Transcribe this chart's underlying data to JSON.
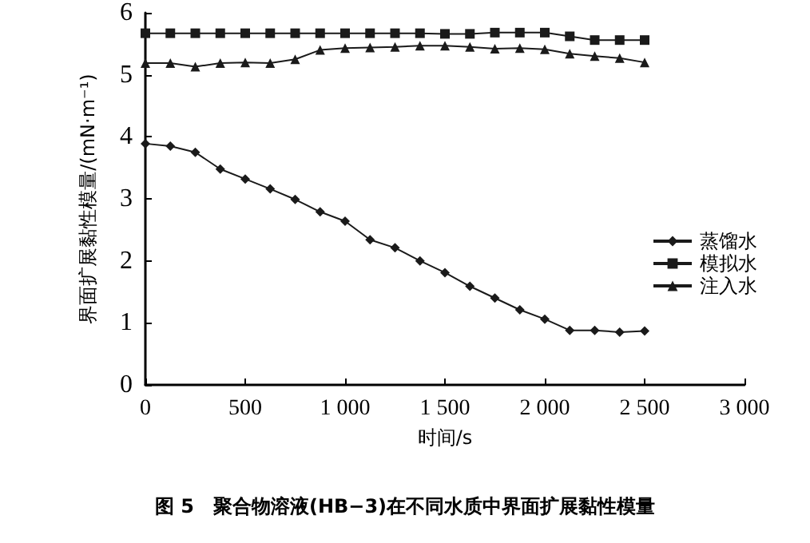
{
  "chart_data": {
    "type": "line",
    "title": "图 5　聚合物溶液(HB−3)在不同水质中界面扩展黏性模量",
    "xlabel": "时间/s",
    "ylabel": "界面扩展黏性模量/(mN·m⁻¹)",
    "x": [
      0,
      125,
      250,
      375,
      500,
      625,
      750,
      875,
      1000,
      1125,
      1250,
      1375,
      1500,
      1625,
      1750,
      1875,
      2000,
      2125,
      2250,
      2375,
      2500
    ],
    "series": [
      {
        "name": "蒸馏水",
        "color": "#1a1a1a",
        "marker": "diamond",
        "values": [
          3.89,
          3.85,
          3.75,
          3.48,
          3.32,
          3.16,
          2.99,
          2.79,
          2.64,
          2.34,
          2.21,
          2.0,
          1.81,
          1.59,
          1.4,
          1.21,
          1.06,
          0.88,
          0.88,
          0.85,
          0.87
        ]
      },
      {
        "name": "模拟水",
        "color": "#1a1a1a",
        "marker": "square",
        "values": [
          5.67,
          5.67,
          5.67,
          5.67,
          5.67,
          5.67,
          5.67,
          5.67,
          5.67,
          5.67,
          5.67,
          5.67,
          5.66,
          5.66,
          5.68,
          5.68,
          5.68,
          5.62,
          5.56,
          5.56,
          5.56
        ]
      },
      {
        "name": "注入水",
        "color": "#1a1a1a",
        "marker": "triangle",
        "values": [
          5.19,
          5.19,
          5.13,
          5.19,
          5.2,
          5.19,
          5.25,
          5.4,
          5.43,
          5.44,
          5.45,
          5.47,
          5.47,
          5.45,
          5.42,
          5.43,
          5.41,
          5.34,
          5.3,
          5.27,
          5.2
        ]
      }
    ],
    "xlim": [
      0,
      3000
    ],
    "xticks": [
      0,
      500,
      {
        "value": 1000,
        "label": "1 000"
      },
      {
        "value": 1500,
        "label": "1 500"
      },
      {
        "value": 2000,
        "label": "2 000"
      },
      {
        "value": 2500,
        "label": "2 500"
      },
      {
        "value": 3000,
        "label": "3 000"
      }
    ],
    "ylim": [
      0,
      6
    ],
    "yticks": [
      0,
      1,
      2,
      3,
      4,
      5,
      6
    ],
    "grid": false,
    "legend": "right",
    "line_style": "solid"
  }
}
